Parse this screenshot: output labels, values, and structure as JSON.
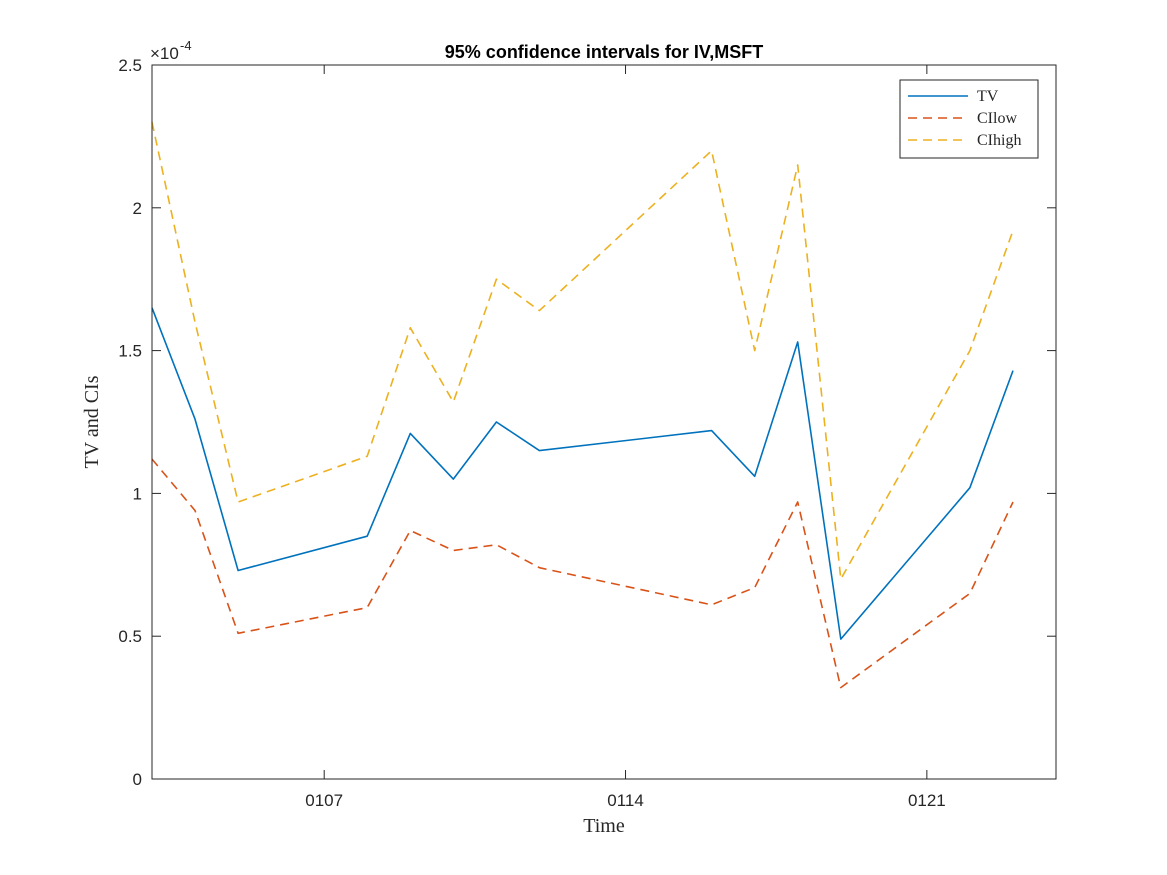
{
  "chart_data": {
    "type": "line",
    "title": "95% confidence intervals for IV,MSFT",
    "xlabel": "Time",
    "ylabel": "TV and CIs",
    "y_exponent_label": "×10",
    "y_exponent_power": "-4",
    "x_tick_labels": [
      "0107",
      "0114",
      "0121"
    ],
    "y_tick_labels": [
      "0",
      "0.5",
      "1",
      "1.5",
      "2",
      "2.5"
    ],
    "y_scale": 0.0001,
    "xlim": [
      "2017-01-03",
      "2017-01-24"
    ],
    "ylim": [
      0,
      2.5
    ],
    "x_ticks": [
      "2017-01-07",
      "2017-01-14",
      "2017-01-21"
    ],
    "y_ticks": [
      0,
      0.5,
      1,
      1.5,
      2,
      2.5
    ],
    "legend_position": "top-right",
    "x": [
      "2017-01-03",
      "2017-01-04",
      "2017-01-05",
      "2017-01-08",
      "2017-01-09",
      "2017-01-10",
      "2017-01-11",
      "2017-01-12",
      "2017-01-16",
      "2017-01-17",
      "2017-01-18",
      "2017-01-19",
      "2017-01-22",
      "2017-01-23"
    ],
    "series": [
      {
        "name": "TV",
        "color": "#0072BD",
        "dash": "solid",
        "values": [
          1.65,
          1.26,
          0.73,
          0.85,
          1.21,
          1.05,
          1.25,
          1.15,
          1.22,
          1.06,
          1.53,
          0.49,
          1.02,
          1.43
        ]
      },
      {
        "name": "CIlow",
        "color": "#D95319",
        "dash": "dashed",
        "values": [
          1.12,
          0.94,
          0.51,
          0.6,
          0.87,
          0.8,
          0.82,
          0.74,
          0.61,
          0.67,
          0.97,
          0.32,
          0.65,
          0.97
        ]
      },
      {
        "name": "CIhigh",
        "color": "#EDB120",
        "dash": "dashed",
        "values": [
          2.3,
          1.6,
          0.97,
          1.13,
          1.58,
          1.32,
          1.75,
          1.64,
          2.2,
          1.5,
          2.15,
          0.7,
          1.5,
          1.92
        ]
      }
    ]
  }
}
